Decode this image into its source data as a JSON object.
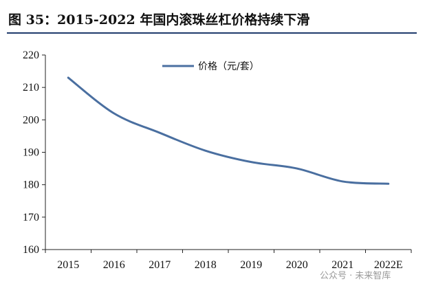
{
  "chart_data": {
    "type": "line",
    "title": "图 35：2015-2022 年国内滚珠丝杠价格持续下滑",
    "categories": [
      "2015",
      "2016",
      "2017",
      "2018",
      "2019",
      "2020",
      "2021",
      "2022E"
    ],
    "series": [
      {
        "name": "价格（元/套）",
        "values": [
          213,
          202,
          196,
          190.5,
          187,
          185,
          181,
          180.3
        ],
        "color": "#4a6fa0"
      }
    ],
    "ylim": [
      160,
      220
    ],
    "yticks": [
      "160",
      "170",
      "180",
      "190",
      "200",
      "210",
      "220"
    ],
    "xlabel": "",
    "ylabel": "",
    "grid": false,
    "legend_position": "top-center"
  },
  "watermark": "公众号 · 未来智库"
}
